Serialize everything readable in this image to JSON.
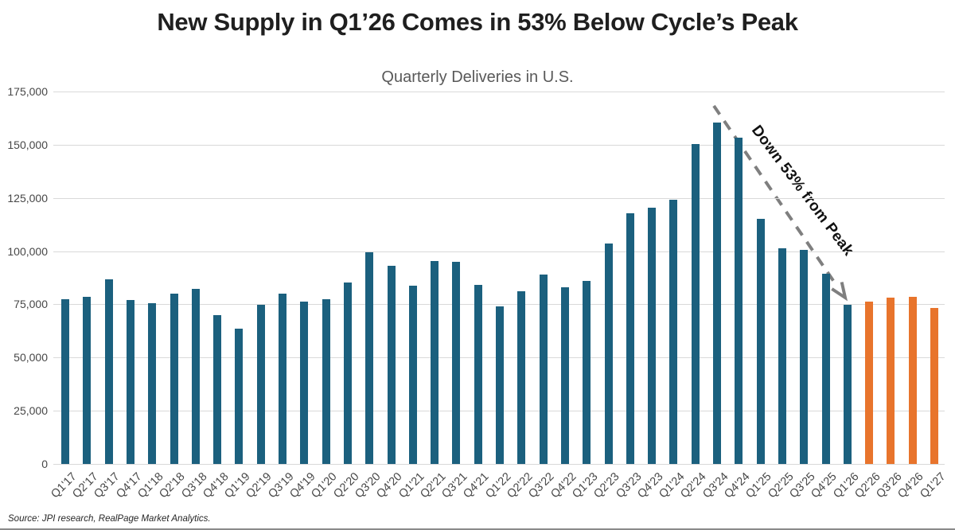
{
  "source_note": "Source: JPI research, RealPage Market Analytics.",
  "chart_data": {
    "type": "bar",
    "title": "New Supply in Q1’26 Comes in 53% Below Cycle’s Peak",
    "subtitle": "Quarterly Deliveries in U.S.",
    "xlabel": "",
    "ylabel": "",
    "ylim": [
      0,
      175000
    ],
    "y_ticks": [
      0,
      25000,
      50000,
      75000,
      100000,
      125000,
      150000,
      175000
    ],
    "grid": "horizontal",
    "legend": "none",
    "categories": [
      "Q1'17",
      "Q2'17",
      "Q3'17",
      "Q4'17",
      "Q1'18",
      "Q2'18",
      "Q3'18",
      "Q4'18",
      "Q1'19",
      "Q2'19",
      "Q3'19",
      "Q4'19",
      "Q1'20",
      "Q2'20",
      "Q3'20",
      "Q4'20",
      "Q1'21",
      "Q2'21",
      "Q3'21",
      "Q4'21",
      "Q1'22",
      "Q2'22",
      "Q3'22",
      "Q4'22",
      "Q1'23",
      "Q2'23",
      "Q3'23",
      "Q4'23",
      "Q1'24",
      "Q2'24",
      "Q3'24",
      "Q4'24",
      "Q1'25",
      "Q2'25",
      "Q3'25",
      "Q4'25",
      "Q1'26",
      "Q2'26",
      "Q3'26",
      "Q4'26",
      "Q1'27"
    ],
    "series": [
      {
        "name": "Quarterly Deliveries",
        "values": [
          77400,
          78600,
          86800,
          77000,
          75600,
          80000,
          82100,
          70000,
          63500,
          74600,
          79900,
          76100,
          77400,
          85300,
          99300,
          93000,
          83700,
          95500,
          94900,
          84200,
          74000,
          81300,
          88900,
          83100,
          86000,
          103600,
          117900,
          120300,
          124200,
          150200,
          160400,
          153200,
          115000,
          101200,
          100500,
          89400,
          74900,
          76300,
          78100,
          78400,
          73300
        ]
      }
    ],
    "forecast_start_category": "Q2'26",
    "forecast_start_index": 37,
    "colors": {
      "actual": "#1b607e",
      "forecast": "#e8742c",
      "gridline": "#d9d9d9",
      "arrow": "#7f7f7f"
    },
    "annotation": {
      "text": "Down 53% from Peak"
    }
  }
}
